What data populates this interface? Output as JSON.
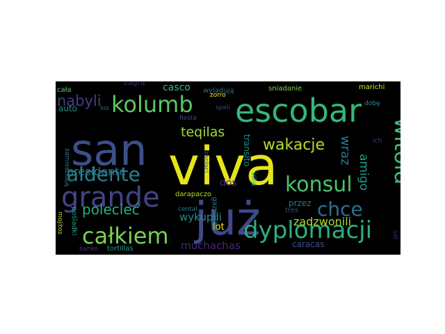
{
  "background": "#000000",
  "words": [
    {
      "text": "viva",
      "color": "#e5e419"
    },
    {
      "text": "san",
      "color": "#3c4f8a"
    },
    {
      "text": "już",
      "color": "#3e4a89"
    },
    {
      "text": "escobar",
      "color": "#35b779"
    },
    {
      "text": "grande",
      "color": "#414487"
    },
    {
      "text": "kolumb",
      "color": "#5cc863"
    },
    {
      "text": "witold",
      "color": "#3aba76"
    },
    {
      "text": "dyplomacji",
      "color": "#2ab07f"
    },
    {
      "text": "konsul",
      "color": "#4ac16d"
    },
    {
      "text": "chce",
      "color": "#2d708e"
    },
    {
      "text": "całkiem",
      "color": "#7ad151"
    },
    {
      "text": "aldente",
      "color": "#25838e"
    },
    {
      "text": "wakacje",
      "color": "#b5de2b"
    },
    {
      "text": "nabyli",
      "color": "#433e85"
    },
    {
      "text": "teqilas",
      "color": "#a0da39"
    },
    {
      "text": "presidente",
      "color": "#2c728e"
    },
    {
      "text": "polecieć",
      "color": "#29af7f"
    },
    {
      "text": "amigo",
      "color": "#1f9e89"
    },
    {
      "text": "wraz",
      "color": "#2a788e"
    },
    {
      "text": "zadzwonili",
      "color": "#addc30"
    },
    {
      "text": "muchachas",
      "color": "#482878"
    },
    {
      "text": "wykupili",
      "color": "#21918c"
    },
    {
      "text": "dos",
      "color": "#472d7b"
    },
    {
      "text": "casco",
      "color": "#35b779"
    },
    {
      "text": "auto",
      "color": "#21918c"
    },
    {
      "text": "caracas",
      "color": "#3b528b"
    },
    {
      "text": "przez",
      "color": "#2c728e"
    },
    {
      "text": "lot",
      "color": "#fde725"
    },
    {
      "text": "transito",
      "color": "#21918c"
    },
    {
      "text": "zagra",
      "color": "#482878"
    },
    {
      "text": "wylądują",
      "color": "#31688e"
    },
    {
      "text": "sniadanie",
      "color": "#7ad151"
    },
    {
      "text": "marichi",
      "color": "#d8e219"
    },
    {
      "text": "cała",
      "color": "#5ec962"
    },
    {
      "text": "zorro",
      "color": "#fde725"
    },
    {
      "text": "spali",
      "color": "#414487"
    },
    {
      "text": "los",
      "color": "#31688e"
    },
    {
      "text": "fiesta",
      "color": "#3e4989"
    },
    {
      "text": "dobę",
      "color": "#21918c"
    },
    {
      "text": "zamieszkają",
      "color": "#2a788e"
    },
    {
      "text": "ich",
      "color": "#433e85"
    },
    {
      "text": "zapłaci",
      "color": "#3b528b"
    },
    {
      "text": "darapaczo",
      "color": "#b5de2b"
    },
    {
      "text": "villa",
      "color": "#35b779"
    },
    {
      "text": "cental",
      "color": "#26828e"
    },
    {
      "text": "gazpacho",
      "color": "#2a788e"
    },
    {
      "text": "tres",
      "color": "#3e4989"
    },
    {
      "text": "sol",
      "color": "#482878"
    },
    {
      "text": "pośladki",
      "color": "#1fa187"
    },
    {
      "text": "mojitos",
      "color": "#b5de2b"
    },
    {
      "text": "banko",
      "color": "#46327e"
    },
    {
      "text": "tortillas",
      "color": "#20a486"
    }
  ]
}
